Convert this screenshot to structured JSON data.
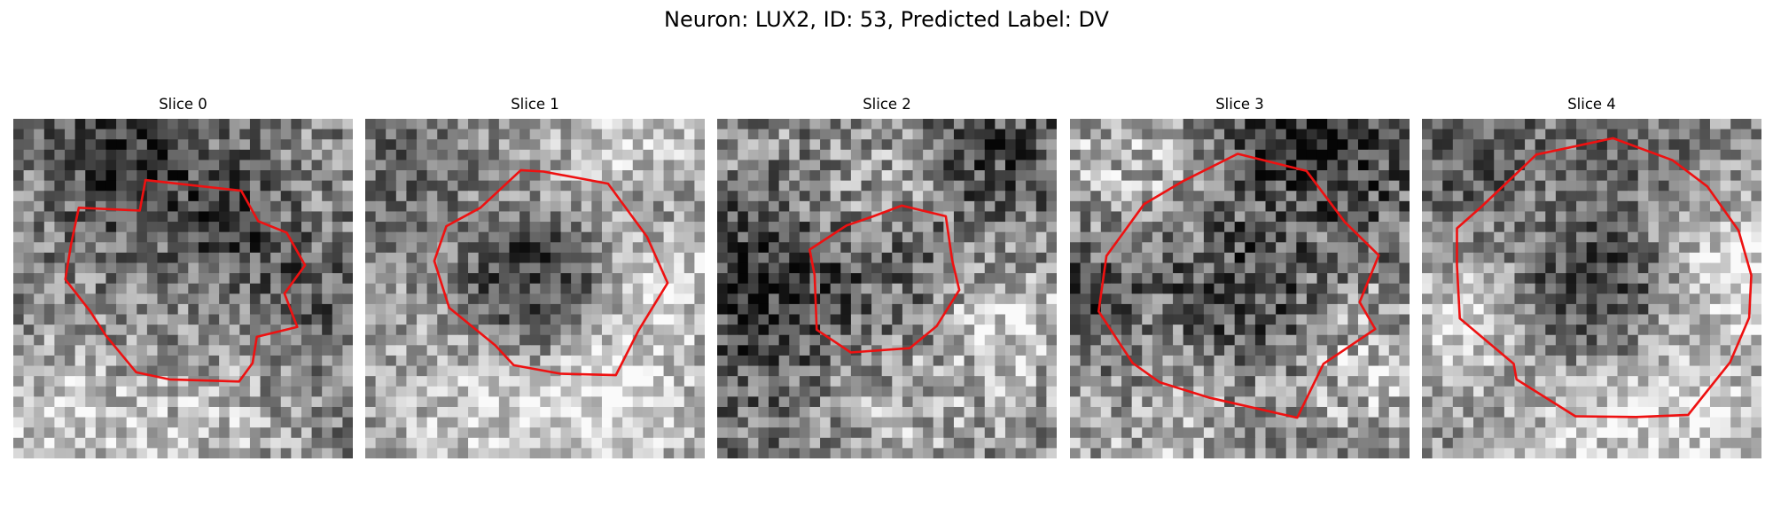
{
  "figure": {
    "title": "Neuron: LUX2, ID: 53, Predicted Label: DV",
    "contour_color": "#ee1111",
    "colormap": "grayscale",
    "panels": [
      {
        "title": "Slice 0",
        "brightness": 0.52,
        "center_tone": -0.04,
        "contrast": 0.55,
        "seed": 11,
        "features": [
          [
            0.34,
            0.12,
            0.16,
            -0.35
          ],
          [
            0.65,
            0.28,
            0.1,
            -0.25
          ],
          [
            0.15,
            0.88,
            0.14,
            0.3
          ],
          [
            0.55,
            0.92,
            0.18,
            0.22
          ],
          [
            0.85,
            0.5,
            0.12,
            -0.2
          ]
        ],
        "contour": [
          [
            8.2,
            -13.8
          ],
          [
            10.6,
            -9.5
          ],
          [
            14.6,
            -7.9
          ],
          [
            17.2,
            -3.3
          ],
          [
            14.3,
            0.7
          ],
          [
            16.1,
            5.4
          ],
          [
            10.4,
            6.8
          ],
          [
            9.8,
            10.5
          ],
          [
            7.9,
            13.1
          ],
          [
            -1.9,
            12.8
          ],
          [
            -6.6,
            11.8
          ],
          [
            -10.9,
            6.6
          ],
          [
            -13.1,
            3.2
          ],
          [
            -16.6,
            -1.3
          ],
          [
            -15.8,
            -6.2
          ],
          [
            -14.7,
            -11.4
          ],
          [
            -6.1,
            -11.0
          ],
          [
            -5.3,
            -15.3
          ]
        ]
      },
      {
        "title": "Slice 1",
        "brightness": 0.6,
        "center_tone": -0.36,
        "contrast": 0.48,
        "seed": 23,
        "features": [
          [
            0.1,
            0.15,
            0.18,
            -0.2
          ],
          [
            0.8,
            0.1,
            0.15,
            0.25
          ],
          [
            0.9,
            0.45,
            0.12,
            0.2
          ],
          [
            0.7,
            0.8,
            0.2,
            0.28
          ],
          [
            0.3,
            0.9,
            0.18,
            0.15
          ],
          [
            0.85,
            0.25,
            0.1,
            -0.18
          ]
        ],
        "contour": [
          [
            10.3,
            -14.8
          ],
          [
            15.8,
            -7.3
          ],
          [
            18.7,
            -0.8
          ],
          [
            14.6,
            5.9
          ],
          [
            11.4,
            12.2
          ],
          [
            3.6,
            12.0
          ],
          [
            -3.0,
            10.8
          ],
          [
            -5.6,
            8.0
          ],
          [
            -12.1,
            2.7
          ],
          [
            -14.2,
            -3.9
          ],
          [
            -12.5,
            -8.8
          ],
          [
            -7.7,
            -11.4
          ],
          [
            -2.0,
            -16.7
          ],
          [
            1.2,
            -16.5
          ]
        ]
      },
      {
        "title": "Slice 2",
        "brightness": 0.55,
        "center_tone": -0.14,
        "contrast": 0.6,
        "seed": 37,
        "features": [
          [
            0.1,
            0.45,
            0.16,
            -0.35
          ],
          [
            0.8,
            0.1,
            0.18,
            -0.28
          ],
          [
            0.2,
            0.8,
            0.18,
            -0.2
          ],
          [
            0.85,
            0.6,
            0.14,
            0.25
          ],
          [
            0.45,
            0.9,
            0.2,
            0.18
          ],
          [
            0.55,
            0.18,
            0.12,
            0.15
          ]
        ],
        "contour": [
          [
            8.3,
            -10.2
          ],
          [
            9.2,
            -4.0
          ],
          [
            10.2,
            0.2
          ],
          [
            7.0,
            5.3
          ],
          [
            3.2,
            8.4
          ],
          [
            -5.1,
            9.0
          ],
          [
            -9.9,
            5.8
          ],
          [
            -10.2,
            -1.9
          ],
          [
            -10.9,
            -5.5
          ],
          [
            -5.7,
            -8.9
          ],
          [
            -1.9,
            -10.2
          ],
          [
            2.1,
            -11.7
          ]
        ]
      },
      {
        "title": "Slice 3",
        "brightness": 0.52,
        "center_tone": -0.22,
        "contrast": 0.62,
        "seed": 53,
        "features": [
          [
            0.15,
            0.1,
            0.18,
            0.2
          ],
          [
            0.8,
            0.12,
            0.16,
            -0.3
          ],
          [
            0.05,
            0.55,
            0.15,
            -0.25
          ],
          [
            0.9,
            0.75,
            0.15,
            0.22
          ],
          [
            0.25,
            0.9,
            0.18,
            0.18
          ],
          [
            0.6,
            0.05,
            0.12,
            -0.22
          ]
        ],
        "contour": [
          [
            14.8,
            -9.4
          ],
          [
            19.6,
            -4.7
          ],
          [
            16.9,
            1.9
          ],
          [
            19.1,
            5.7
          ],
          [
            11.8,
            10.6
          ],
          [
            8.1,
            18.2
          ],
          [
            -4.2,
            15.4
          ],
          [
            -11.3,
            13.2
          ],
          [
            -15.1,
            10.5
          ],
          [
            -19.9,
            3.2
          ],
          [
            -18.8,
            -4.6
          ],
          [
            -13.5,
            -11.9
          ],
          [
            -8.1,
            -15.1
          ],
          [
            -0.3,
            -19.0
          ],
          [
            9.4,
            -16.6
          ]
        ]
      },
      {
        "title": "Slice 4",
        "brightness": 0.57,
        "center_tone": -0.28,
        "contrast": 0.5,
        "seed": 71,
        "features": [
          [
            0.15,
            0.1,
            0.15,
            -0.25
          ],
          [
            0.95,
            0.45,
            0.14,
            0.3
          ],
          [
            0.1,
            0.6,
            0.12,
            0.25
          ],
          [
            0.8,
            0.85,
            0.16,
            0.25
          ],
          [
            0.45,
            0.95,
            0.18,
            0.18
          ],
          [
            0.6,
            0.05,
            0.14,
            -0.2
          ]
        ],
        "contour": [
          [
            16.3,
            -14.4
          ],
          [
            20.7,
            -8.2
          ],
          [
            22.5,
            -1.9
          ],
          [
            22.2,
            4.1
          ],
          [
            19.5,
            10.4
          ],
          [
            13.6,
            17.8
          ],
          [
            6.3,
            18.1
          ],
          [
            -2.3,
            18.0
          ],
          [
            -10.6,
            12.8
          ],
          [
            -11.0,
            10.6
          ],
          [
            -18.6,
            4.2
          ],
          [
            -19.0,
            -3.3
          ],
          [
            -19.0,
            -8.5
          ],
          [
            -15.6,
            -11.5
          ],
          [
            -7.8,
            -18.9
          ],
          [
            3.0,
            -21.2
          ],
          [
            11.4,
            -18.1
          ]
        ]
      }
    ]
  }
}
